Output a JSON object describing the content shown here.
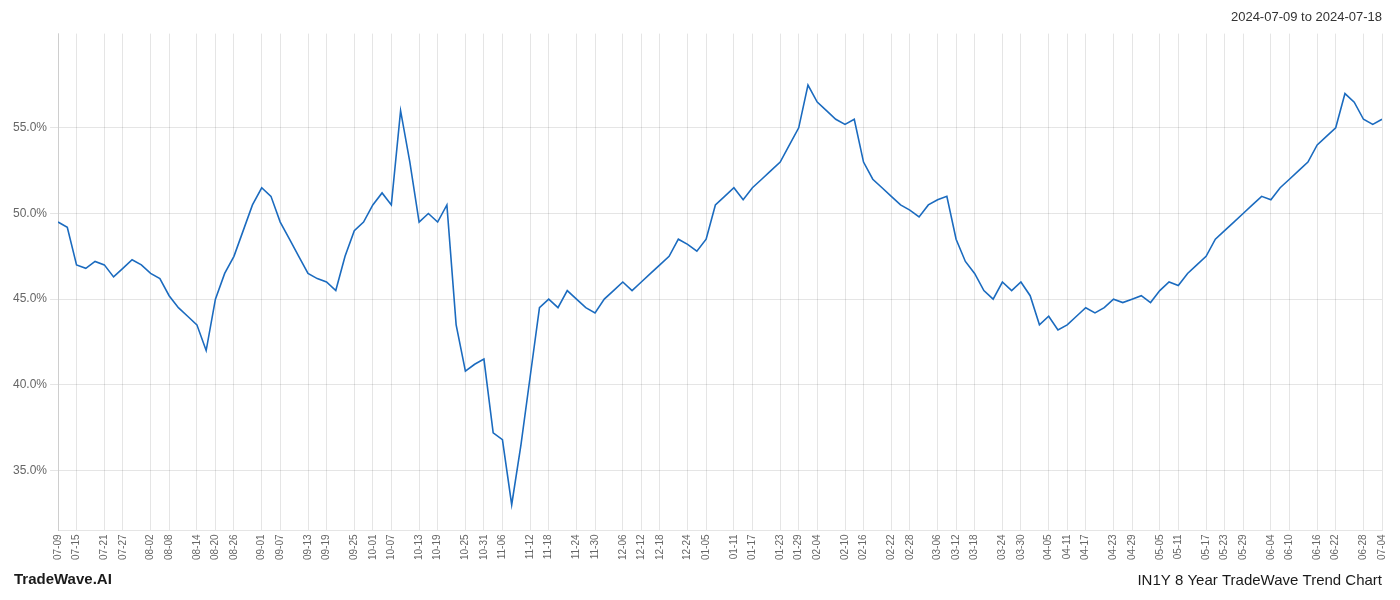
{
  "chart_data": {
    "type": "line",
    "title": "IN1Y 8 Year TradeWave Trend Chart",
    "subtitle": "2024-07-09 to 2024-07-18",
    "annotations": [
      "TradeWave.AI"
    ],
    "color": "#1b6bbf",
    "grid": true,
    "categories": [
      "07-09",
      null,
      "07-15",
      null,
      null,
      "07-21",
      null,
      "07-27",
      null,
      null,
      "08-02",
      null,
      "08-08",
      null,
      null,
      "08-14",
      null,
      "08-20",
      null,
      "08-26",
      null,
      null,
      "09-01",
      null,
      "09-07",
      null,
      null,
      "09-13",
      null,
      "09-19",
      null,
      null,
      "09-25",
      null,
      "10-01",
      null,
      "10-07",
      null,
      null,
      "10-13",
      null,
      "10-19",
      null,
      null,
      "10-25",
      null,
      "10-31",
      null,
      "11-06",
      null,
      null,
      "11-12",
      null,
      "11-18",
      null,
      null,
      "11-24",
      null,
      "11-30",
      null,
      null,
      "12-06",
      null,
      "12-12",
      null,
      "12-18",
      null,
      null,
      "12-24",
      null,
      "01-05",
      null,
      null,
      "01-11",
      null,
      "01-17",
      null,
      null,
      "01-23",
      null,
      "01-29",
      null,
      "02-04",
      null,
      null,
      "02-10",
      null,
      "02-16",
      null,
      null,
      "02-22",
      null,
      "02-28",
      null,
      null,
      "03-06",
      null,
      "03-12",
      null,
      "03-18",
      null,
      null,
      "03-24",
      null,
      "03-30",
      null,
      null,
      "04-05",
      null,
      "04-11",
      null,
      "04-17",
      null,
      null,
      "04-23",
      null,
      "04-29",
      null,
      null,
      "05-05",
      null,
      "05-11",
      null,
      null,
      "05-17",
      null,
      "05-23",
      null,
      "05-29",
      null,
      null,
      "06-04",
      null,
      "06-10",
      null,
      null,
      "06-16",
      null,
      "06-22",
      null,
      null,
      "06-28",
      null,
      "07-04"
    ],
    "values": [
      49.5,
      49.2,
      47.0,
      46.8,
      47.2,
      47.0,
      46.3,
      46.8,
      47.3,
      47.0,
      46.5,
      46.2,
      45.2,
      44.5,
      44.0,
      43.5,
      42.0,
      45.0,
      46.5,
      47.5,
      49.0,
      50.5,
      51.5,
      51.0,
      49.5,
      48.5,
      47.5,
      46.5,
      46.2,
      46.0,
      45.5,
      47.5,
      49.0,
      49.5,
      50.5,
      51.2,
      50.5,
      56.0,
      53.0,
      49.5,
      50.0,
      49.5,
      50.5,
      43.5,
      40.8,
      41.2,
      41.5,
      37.2,
      36.8,
      33.0,
      36.5,
      40.5,
      44.5,
      45.0,
      44.5,
      45.5,
      45.0,
      44.5,
      44.2,
      45.0,
      45.5,
      46.0,
      45.5,
      46.0,
      46.5,
      47.0,
      47.5,
      48.5,
      48.2,
      47.8,
      48.5,
      50.5,
      51.0,
      51.5,
      50.8,
      51.5,
      52.0,
      52.5,
      53.0,
      54.0,
      55.0,
      57.5,
      56.5,
      56.0,
      55.5,
      55.2,
      55.5,
      53.0,
      52.0,
      51.5,
      51.0,
      50.5,
      50.2,
      49.8,
      50.5,
      50.8,
      51.0,
      48.5,
      47.2,
      46.5,
      45.5,
      45.0,
      46.0,
      45.5,
      46.0,
      45.2,
      43.5,
      44.0,
      43.2,
      43.5,
      44.0,
      44.5,
      44.2,
      44.5,
      45.0,
      44.8,
      45.0,
      45.2,
      44.8,
      45.5,
      46.0,
      45.8,
      46.5,
      47.0,
      47.5,
      48.5,
      49.0,
      49.5,
      50.0,
      50.5,
      51.0,
      50.8,
      51.5,
      52.0,
      52.5,
      53.0,
      54.0,
      54.5,
      55.0,
      57.0,
      56.5,
      55.5,
      55.2,
      55.5
    ],
    "ylim": [
      31.5,
      60.5
    ],
    "yticks": [
      {
        "value": 35.0,
        "label": "35.0%"
      },
      {
        "value": 40.0,
        "label": "40.0%"
      },
      {
        "value": 45.0,
        "label": "45.0%"
      },
      {
        "value": 50.0,
        "label": "50.0%"
      },
      {
        "value": 55.0,
        "label": "55.0%"
      }
    ]
  }
}
